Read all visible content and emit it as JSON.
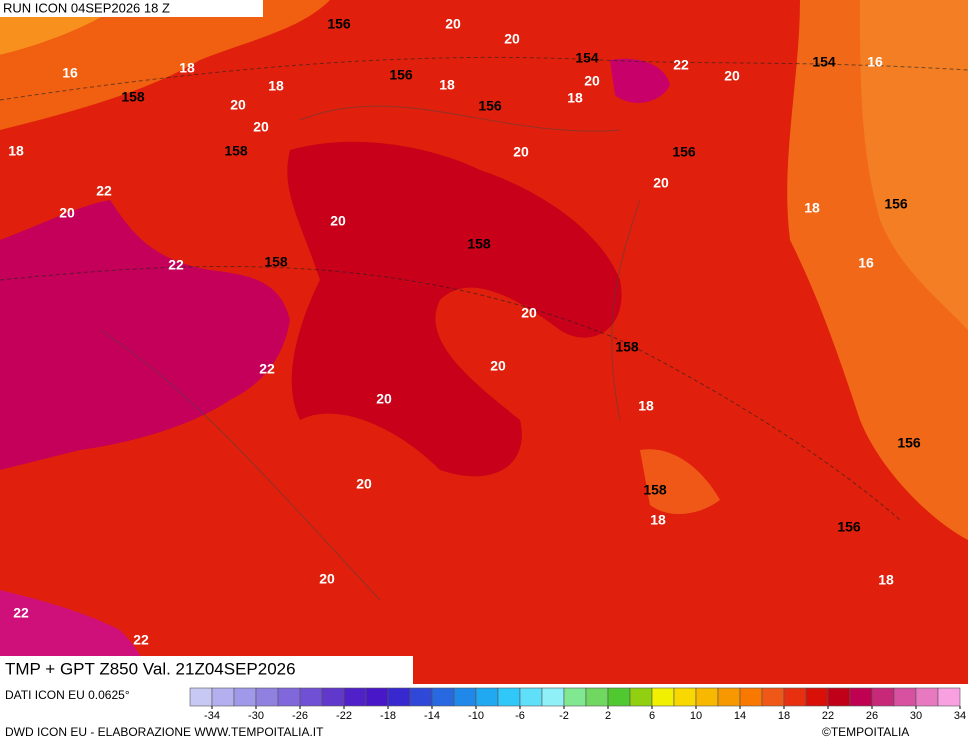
{
  "header": {
    "run": "RUN ICON 04SEP2026 18 Z",
    "title": "TMP + GPT Z850 Val. 21Z04SEP2026",
    "source": "DATI ICON EU 0.0625°",
    "credit": "DWD ICON EU - ELABORAZIONE WWW.TEMPOITALIA.IT",
    "copyright": "©TEMPOITALIA"
  },
  "map": {
    "temperature_labels": [
      20,
      20,
      18,
      16,
      18,
      18,
      20,
      22,
      20,
      16,
      20,
      20,
      18,
      18,
      20,
      20,
      22,
      20,
      20,
      18,
      22,
      16,
      20,
      20,
      22,
      20,
      18,
      20,
      18,
      20,
      18,
      22,
      22
    ],
    "geopotential_labels": [
      156,
      154,
      156,
      154,
      158,
      156,
      158,
      156,
      156,
      158,
      158,
      158,
      156,
      158,
      156
    ],
    "temperature_label_color": "#ffffff",
    "geopotential_label_color": "#000000"
  },
  "colorbar": {
    "colors": [
      "#c8c8f4",
      "#b4b0f0",
      "#a098e8",
      "#9080e0",
      "#8068dc",
      "#7050d4",
      "#6038cc",
      "#5020c8",
      "#4818c8",
      "#3828d0",
      "#3048d8",
      "#2868e0",
      "#2088e8",
      "#20a8f0",
      "#30c8f8",
      "#60e0f8",
      "#90f0f8",
      "#80e890",
      "#70d860",
      "#50c830",
      "#90d010",
      "#f0f000",
      "#f8d800",
      "#f8b800",
      "#f89800",
      "#f87800",
      "#f05818",
      "#e83010",
      "#d81008",
      "#c00018",
      "#c00050",
      "#c82878",
      "#d850a0",
      "#e878c0",
      "#f8a0e0"
    ],
    "ticks": [
      -34,
      -30,
      -26,
      -22,
      -18,
      -14,
      -10,
      -6,
      -2,
      2,
      6,
      10,
      14,
      18,
      22,
      26,
      30,
      34
    ]
  }
}
